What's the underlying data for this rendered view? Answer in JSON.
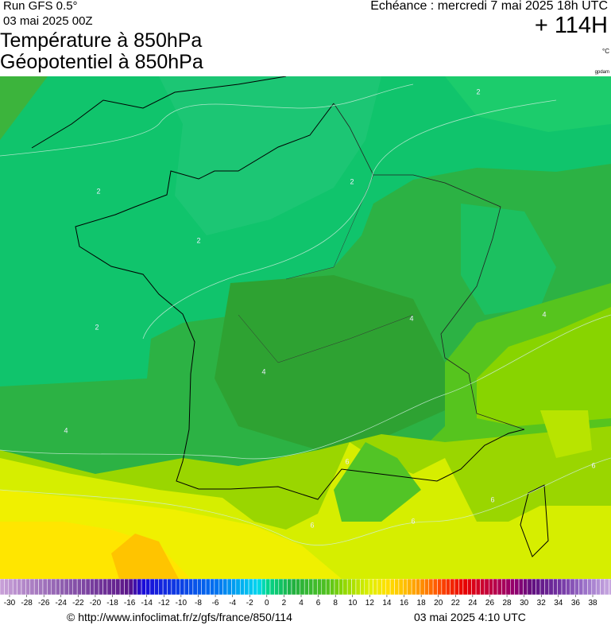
{
  "header": {
    "run": "Run GFS 0.5°",
    "run_date": "03 mai 2025 00Z",
    "title1": "Température à 850hPa",
    "title2": "Géopotentiel à 850hPa",
    "valid": "Echéance : mercredi 7 mai 2025 18h UTC",
    "lead": "+ 114H",
    "unit": "°C",
    "unit2": "gpdam"
  },
  "map": {
    "contour_labels": [
      2,
      2,
      2,
      2,
      2,
      4,
      4,
      4,
      4,
      6,
      6,
      6,
      6,
      6
    ]
  },
  "scale": {
    "ticks": [
      -30,
      -28,
      -26,
      -24,
      -22,
      -20,
      -18,
      -16,
      -14,
      -12,
      -10,
      -8,
      -6,
      -4,
      -2,
      0,
      2,
      4,
      6,
      8,
      10,
      12,
      14,
      16,
      18,
      20,
      22,
      24,
      26,
      28,
      30,
      32,
      34,
      36,
      38
    ]
  },
  "footer": {
    "source": "© http://www.infoclimat.fr/z/gfs/france/850/114",
    "issued": "03 mai 2025  4:10 UTC"
  }
}
